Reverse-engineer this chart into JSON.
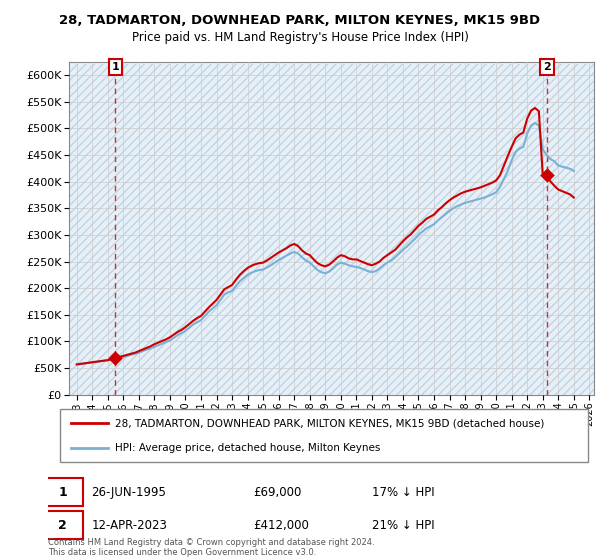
{
  "title": "28, TADMARTON, DOWNHEAD PARK, MILTON KEYNES, MK15 9BD",
  "subtitle": "Price paid vs. HM Land Registry's House Price Index (HPI)",
  "ylim": [
    0,
    600000
  ],
  "sale1_date": 1995.49,
  "sale1_price": 69000,
  "sale2_date": 2023.28,
  "sale2_price": 412000,
  "line_color_property": "#cc0000",
  "line_color_hpi": "#7ab0d4",
  "bg_color": "#e8f0f7",
  "hatch_color": "#c0d4e4",
  "grid_color": "#cccccc",
  "legend_label_property": "28, TADMARTON, DOWNHEAD PARK, MILTON KEYNES, MK15 9BD (detached house)",
  "legend_label_hpi": "HPI: Average price, detached house, Milton Keynes",
  "note1_date": "26-JUN-1995",
  "note1_price": "£69,000",
  "note1_hpi": "17% ↓ HPI",
  "note2_date": "12-APR-2023",
  "note2_price": "£412,000",
  "note2_hpi": "21% ↓ HPI",
  "copyright": "Contains HM Land Registry data © Crown copyright and database right 2024.\nThis data is licensed under the Open Government Licence v3.0.",
  "xmin": 1993,
  "xmax": 2026,
  "hpi_years": [
    1993.0,
    1993.25,
    1993.5,
    1993.75,
    1994.0,
    1994.25,
    1994.5,
    1994.75,
    1995.0,
    1995.25,
    1995.5,
    1995.75,
    1996.0,
    1996.25,
    1996.5,
    1996.75,
    1997.0,
    1997.25,
    1997.5,
    1997.75,
    1998.0,
    1998.25,
    1998.5,
    1998.75,
    1999.0,
    1999.25,
    1999.5,
    1999.75,
    2000.0,
    2000.25,
    2000.5,
    2000.75,
    2001.0,
    2001.25,
    2001.5,
    2001.75,
    2002.0,
    2002.25,
    2002.5,
    2002.75,
    2003.0,
    2003.25,
    2003.5,
    2003.75,
    2004.0,
    2004.25,
    2004.5,
    2004.75,
    2005.0,
    2005.25,
    2005.5,
    2005.75,
    2006.0,
    2006.25,
    2006.5,
    2006.75,
    2007.0,
    2007.25,
    2007.5,
    2007.75,
    2008.0,
    2008.25,
    2008.5,
    2008.75,
    2009.0,
    2009.25,
    2009.5,
    2009.75,
    2010.0,
    2010.25,
    2010.5,
    2010.75,
    2011.0,
    2011.25,
    2011.5,
    2011.75,
    2012.0,
    2012.25,
    2012.5,
    2012.75,
    2013.0,
    2013.25,
    2013.5,
    2013.75,
    2014.0,
    2014.25,
    2014.5,
    2014.75,
    2015.0,
    2015.25,
    2015.5,
    2015.75,
    2016.0,
    2016.25,
    2016.5,
    2016.75,
    2017.0,
    2017.25,
    2017.5,
    2017.75,
    2018.0,
    2018.25,
    2018.5,
    2018.75,
    2019.0,
    2019.25,
    2019.5,
    2019.75,
    2020.0,
    2020.25,
    2020.5,
    2020.75,
    2021.0,
    2021.25,
    2021.5,
    2021.75,
    2022.0,
    2022.25,
    2022.5,
    2022.75,
    2023.0,
    2023.25,
    2023.5,
    2023.75,
    2024.0,
    2024.25,
    2024.5,
    2024.75,
    2025.0
  ],
  "hpi_values": [
    57000,
    58000,
    59000,
    60000,
    61000,
    62000,
    63000,
    64000,
    65000,
    66000,
    67000,
    69000,
    71000,
    73000,
    75000,
    77000,
    79000,
    82000,
    85000,
    87000,
    90000,
    93000,
    96000,
    99000,
    102000,
    107000,
    112000,
    116000,
    120000,
    126000,
    132000,
    136000,
    140000,
    148000,
    156000,
    162000,
    168000,
    178000,
    188000,
    192000,
    195000,
    204000,
    213000,
    219000,
    225000,
    229000,
    232000,
    234000,
    235000,
    239000,
    243000,
    248000,
    253000,
    257000,
    261000,
    265000,
    268000,
    265000,
    258000,
    252000,
    248000,
    241000,
    234000,
    230000,
    228000,
    231000,
    237000,
    244000,
    248000,
    246000,
    243000,
    241000,
    240000,
    238000,
    235000,
    232000,
    230000,
    232000,
    237000,
    243000,
    248000,
    252000,
    258000,
    265000,
    272000,
    278000,
    285000,
    292000,
    300000,
    306000,
    312000,
    316000,
    320000,
    327000,
    333000,
    339000,
    345000,
    350000,
    354000,
    357000,
    360000,
    362000,
    364000,
    366000,
    368000,
    370000,
    373000,
    376000,
    380000,
    390000,
    405000,
    420000,
    440000,
    455000,
    462000,
    465000,
    490000,
    505000,
    510000,
    505000,
    460000,
    450000,
    442000,
    438000,
    430000,
    428000,
    426000,
    424000,
    420000
  ],
  "prop_years": [
    1993.0,
    1993.25,
    1993.5,
    1993.75,
    1994.0,
    1994.25,
    1994.5,
    1994.75,
    1995.0,
    1995.25,
    1995.49,
    1995.75,
    1996.0,
    1996.25,
    1996.5,
    1996.75,
    1997.0,
    1997.25,
    1997.5,
    1997.75,
    1998.0,
    1998.25,
    1998.5,
    1998.75,
    1999.0,
    1999.25,
    1999.5,
    1999.75,
    2000.0,
    2000.25,
    2000.5,
    2000.75,
    2001.0,
    2001.25,
    2001.5,
    2001.75,
    2002.0,
    2002.25,
    2002.5,
    2002.75,
    2003.0,
    2003.25,
    2003.5,
    2003.75,
    2004.0,
    2004.25,
    2004.5,
    2004.75,
    2005.0,
    2005.25,
    2005.5,
    2005.75,
    2006.0,
    2006.25,
    2006.5,
    2006.75,
    2007.0,
    2007.25,
    2007.5,
    2007.75,
    2008.0,
    2008.25,
    2008.5,
    2008.75,
    2009.0,
    2009.25,
    2009.5,
    2009.75,
    2010.0,
    2010.25,
    2010.5,
    2010.75,
    2011.0,
    2011.25,
    2011.5,
    2011.75,
    2012.0,
    2012.25,
    2012.5,
    2012.75,
    2013.0,
    2013.25,
    2013.5,
    2013.75,
    2014.0,
    2014.25,
    2014.5,
    2014.75,
    2015.0,
    2015.25,
    2015.5,
    2015.75,
    2016.0,
    2016.25,
    2016.5,
    2016.75,
    2017.0,
    2017.25,
    2017.5,
    2017.75,
    2018.0,
    2018.25,
    2018.5,
    2018.75,
    2019.0,
    2019.25,
    2019.5,
    2019.75,
    2020.0,
    2020.25,
    2020.5,
    2020.75,
    2021.0,
    2021.25,
    2021.5,
    2021.75,
    2022.0,
    2022.25,
    2022.5,
    2022.75,
    2023.0,
    2023.28,
    2023.5,
    2023.75,
    2024.0,
    2024.25,
    2024.5,
    2024.75,
    2025.0
  ],
  "prop_values": [
    57000,
    58000,
    59000,
    60000,
    61000,
    62000,
    63000,
    64000,
    65000,
    67000,
    69000,
    71000,
    73000,
    75000,
    77000,
    79000,
    82000,
    85000,
    88000,
    91000,
    95000,
    98000,
    101000,
    104000,
    108000,
    113000,
    118000,
    122000,
    127000,
    133000,
    139000,
    144000,
    148000,
    156000,
    164000,
    171000,
    178000,
    188000,
    198000,
    202000,
    206000,
    216000,
    225000,
    232000,
    238000,
    242000,
    245000,
    247000,
    248000,
    252000,
    257000,
    262000,
    267000,
    271000,
    275000,
    280000,
    283000,
    279000,
    271000,
    265000,
    262000,
    254000,
    247000,
    243000,
    241000,
    244000,
    250000,
    257000,
    262000,
    260000,
    256000,
    254000,
    254000,
    251000,
    248000,
    245000,
    243000,
    246000,
    250000,
    257000,
    262000,
    267000,
    272000,
    280000,
    288000,
    295000,
    301000,
    309000,
    317000,
    323000,
    330000,
    334000,
    338000,
    346000,
    352000,
    359000,
    365000,
    370000,
    374000,
    378000,
    381000,
    383000,
    385000,
    387000,
    389000,
    392000,
    395000,
    398000,
    402000,
    412000,
    430000,
    448000,
    465000,
    481000,
    488000,
    492000,
    518000,
    533000,
    538000,
    532000,
    412000,
    412000,
    400000,
    392000,
    385000,
    382000,
    379000,
    376000,
    370000
  ]
}
